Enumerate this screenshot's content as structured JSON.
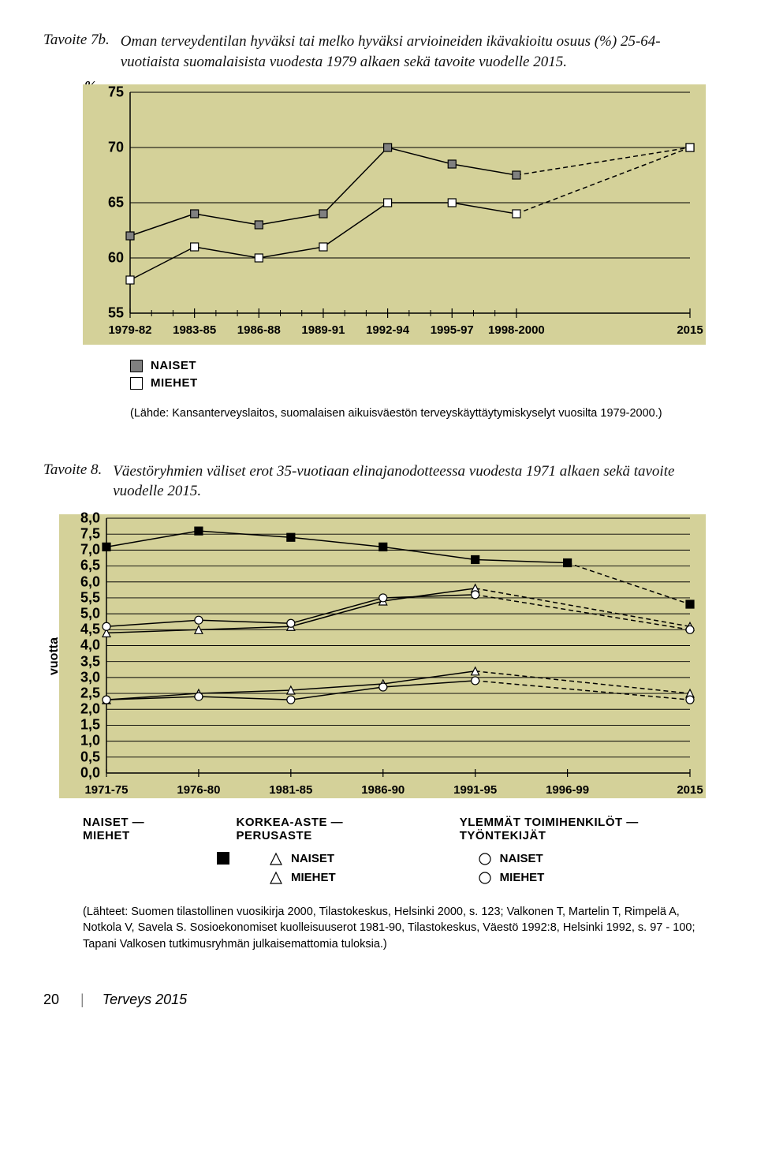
{
  "chart7b": {
    "label": "Tavoite 7b.",
    "caption": "Oman terveydentilan hyväksi tai melko hyväksi arvioineiden ikävakioitu osuus (%) 25-64-vuotiaista suomalaisista vuodesta 1979 alkaen sekä tavoite vuodelle 2015.",
    "y_unit": "%",
    "ylim": [
      55,
      75
    ],
    "ytick_step": 5,
    "x_labels": [
      "1979-82",
      "1983-85",
      "1986-88",
      "1989-91",
      "1992-94",
      "1995-97",
      "1998-2000",
      "2015"
    ],
    "x_positions": [
      0,
      0.115,
      0.23,
      0.345,
      0.46,
      0.575,
      0.69,
      1.0
    ],
    "series": {
      "naiset": {
        "name": "NAISET",
        "marker_fill": "#808080",
        "values": [
          62,
          64,
          63,
          64,
          70,
          68.5,
          67.5,
          70
        ],
        "dash_from": 6
      },
      "miehet": {
        "name": "MIEHET",
        "marker_fill": "#ffffff",
        "values": [
          58,
          61,
          60,
          61,
          65,
          65,
          64,
          70
        ],
        "dash_from": 6
      }
    },
    "background_color": "#d4d199",
    "source": "(Lähde: Kansanterveyslaitos, suomalaisen aikuisväestön terveyskäyttäytymiskyselyt vuosilta 1979-2000.)"
  },
  "chart8": {
    "label": "Tavoite 8.",
    "caption": "Väestöryhmien väliset erot 35-vuotiaan elinajanodotteessa vuodesta 1971 alkaen sekä tavoite vuodelle 2015.",
    "y_label": "vuotta",
    "ylim": [
      0,
      8
    ],
    "ytick_step": 0.5,
    "x_labels": [
      "1971-75",
      "1976-80",
      "1981-85",
      "1986-90",
      "1991-95",
      "1996-99",
      "2015"
    ],
    "x_positions": [
      0,
      0.158,
      0.316,
      0.474,
      0.632,
      0.79,
      1.0
    ],
    "series": {
      "naiset_miehet": {
        "marker": "sq",
        "fill": "#000000",
        "values": [
          7.1,
          7.6,
          7.4,
          7.1,
          6.7,
          6.6,
          5.3
        ],
        "dash_from": 5
      },
      "korkea_naiset": {
        "marker": "tri",
        "fill": "#ffffff",
        "values": [
          2.3,
          2.5,
          2.6,
          2.8,
          3.2,
          null,
          2.5
        ],
        "dash_from": 4
      },
      "korkea_miehet": {
        "marker": "tri",
        "fill": "#ffffff",
        "values": [
          4.4,
          4.5,
          4.6,
          5.4,
          5.8,
          null,
          4.6
        ],
        "dash_from": 4
      },
      "tyo_naiset": {
        "marker": "ci",
        "fill": "#ffffff",
        "values": [
          2.3,
          2.4,
          2.3,
          2.7,
          2.9,
          null,
          2.3
        ],
        "dash_from": 4
      },
      "tyo_miehet": {
        "marker": "ci",
        "fill": "#ffffff",
        "values": [
          4.6,
          4.8,
          4.7,
          5.5,
          5.6,
          null,
          4.5
        ],
        "dash_from": 4
      }
    },
    "background_color": "#d4d199",
    "legend_row1": {
      "a": "NAISET — MIEHET",
      "b": "KORKEA-ASTE — PERUSASTE",
      "c": "YLEMMÄT TOIMIHENKILÖT — TYÖNTEKIJÄT"
    },
    "legend_row2": {
      "col1": {
        "item1": "NAISET",
        "item2": "MIEHET"
      },
      "col2": {
        "item1": "NAISET",
        "item2": "MIEHET"
      }
    },
    "source": "(Lähteet: Suomen tilastollinen vuosikirja 2000, Tilastokeskus, Helsinki 2000, s. 123; Valkonen T, Martelin T, Rimpelä A, Notkola V, Savela S. Sosioekonomiset kuolleisuuserot 1981-90, Tilastokeskus, Väestö 1992:8, Helsinki 1992, s. 97 - 100; Tapani Valkosen tutkimusryhmän julkaisemattomia tuloksia.)"
  },
  "footer": {
    "page": "20",
    "book": "Terveys 2015"
  }
}
